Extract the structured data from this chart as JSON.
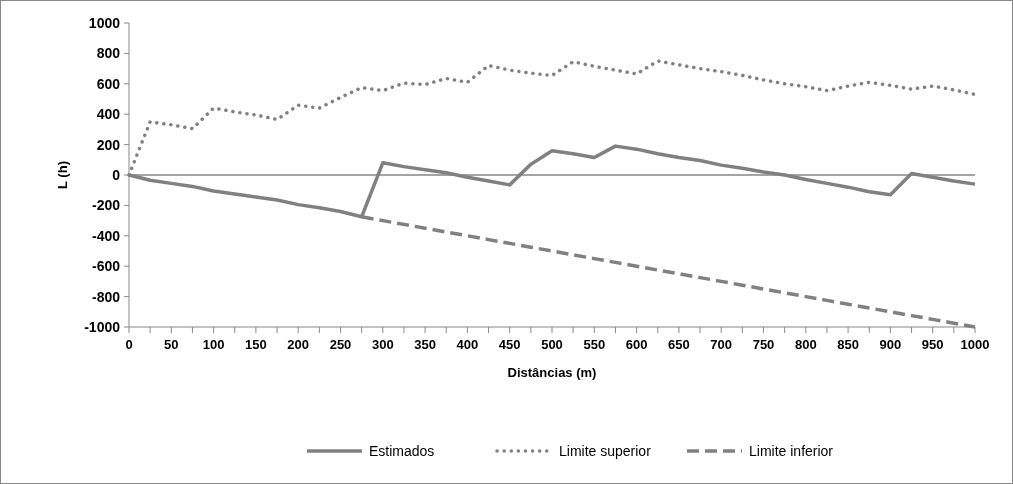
{
  "chart_data": {
    "type": "line",
    "xlabel": "Distâncias (m)",
    "ylabel": "L (h)",
    "x": [
      0,
      25,
      50,
      75,
      100,
      125,
      150,
      175,
      200,
      225,
      250,
      275,
      300,
      325,
      350,
      375,
      400,
      425,
      450,
      475,
      500,
      525,
      550,
      575,
      600,
      625,
      650,
      675,
      700,
      725,
      750,
      775,
      800,
      825,
      850,
      875,
      900,
      925,
      950,
      975,
      1000
    ],
    "series": [
      {
        "name": "Estimados",
        "color": "#808080",
        "line_style": "solid",
        "values": [
          0,
          -35,
          -55,
          -75,
          -105,
          -125,
          -145,
          -165,
          -195,
          -215,
          -240,
          -275,
          80,
          55,
          35,
          15,
          -15,
          -40,
          -65,
          70,
          160,
          140,
          115,
          190,
          170,
          140,
          115,
          95,
          65,
          45,
          20,
          0,
          -30,
          -55,
          -80,
          -110,
          -130,
          10,
          -15,
          -40,
          -60
        ]
      },
      {
        "name": "Limite superior",
        "color": "#808080",
        "line_style": "dotted",
        "values": [
          0,
          350,
          330,
          305,
          440,
          415,
          395,
          365,
          460,
          440,
          510,
          575,
          555,
          605,
          595,
          635,
          610,
          720,
          690,
          670,
          655,
          745,
          715,
          690,
          665,
          750,
          725,
          700,
          680,
          655,
          625,
          600,
          580,
          555,
          585,
          610,
          590,
          565,
          585,
          560,
          530
        ]
      },
      {
        "name": "Limite inferior",
        "color": "#808080",
        "line_style": "dashed",
        "values": [
          null,
          null,
          null,
          null,
          null,
          null,
          null,
          null,
          null,
          null,
          null,
          -275,
          -300,
          -325,
          -350,
          -375,
          -400,
          -425,
          -450,
          -475,
          -500,
          -525,
          -550,
          -575,
          -600,
          -625,
          -650,
          -675,
          -700,
          -725,
          -750,
          -775,
          -800,
          -825,
          -850,
          -875,
          -900,
          -925,
          -950,
          -975,
          -1000
        ]
      }
    ],
    "xlim": [
      0,
      1000
    ],
    "xticks": [
      0,
      {
        "value": 25,
        "label": null
      },
      50,
      {
        "value": 75,
        "label": null
      },
      100,
      {
        "value": 125,
        "label": null
      },
      150,
      {
        "value": 175,
        "label": null
      },
      200,
      {
        "value": 225,
        "label": null
      },
      250,
      {
        "value": 275,
        "label": null
      },
      300,
      {
        "value": 325,
        "label": null
      },
      350,
      {
        "value": 375,
        "label": null
      },
      400,
      {
        "value": 425,
        "label": null
      },
      450,
      {
        "value": 475,
        "label": null
      },
      500,
      {
        "value": 525,
        "label": null
      },
      550,
      {
        "value": 575,
        "label": null
      },
      600,
      {
        "value": 625,
        "label": null
      },
      650,
      {
        "value": 675,
        "label": null
      },
      700,
      {
        "value": 725,
        "label": null
      },
      750,
      {
        "value": 775,
        "label": null
      },
      800,
      {
        "value": 825,
        "label": null
      },
      850,
      {
        "value": 875,
        "label": null
      },
      900,
      {
        "value": 925,
        "label": null
      },
      950,
      {
        "value": 975,
        "label": null
      },
      1000
    ],
    "ylim": [
      -1000,
      1000
    ],
    "yticks": [
      -1000,
      -800,
      -600,
      -400,
      -200,
      0,
      200,
      400,
      600,
      800,
      1000
    ],
    "ref_lines": [
      {
        "axis": "y",
        "value": 0,
        "color": "#868686",
        "line_style": "solid"
      }
    ],
    "grid": false,
    "legend": "bottom",
    "marker": "none"
  }
}
